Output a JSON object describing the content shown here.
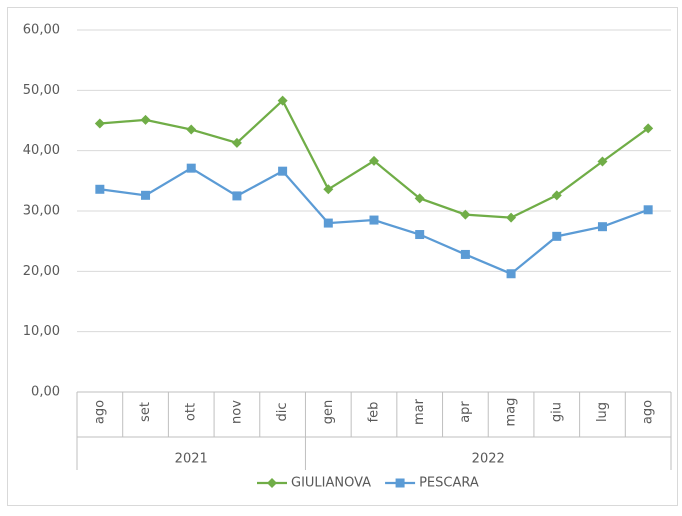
{
  "chart_data": {
    "type": "line",
    "groups": [
      {
        "label": "2021",
        "categories": [
          "ago",
          "set",
          "ott",
          "nov",
          "dic"
        ]
      },
      {
        "label": "2022",
        "categories": [
          "gen",
          "feb",
          "mar",
          "apr",
          "mag",
          "giu",
          "lug",
          "ago"
        ]
      }
    ],
    "series": [
      {
        "name": "GIULIANOVA",
        "color": "#70ad47",
        "marker": "diamond",
        "values": [
          44.5,
          45.1,
          43.5,
          41.3,
          48.3,
          33.6,
          38.3,
          32.1,
          29.4,
          28.9,
          32.6,
          38.2,
          43.7
        ]
      },
      {
        "name": "PESCARA",
        "color": "#5b9bd5",
        "marker": "square",
        "values": [
          33.6,
          32.6,
          37.1,
          32.5,
          36.6,
          28.0,
          28.5,
          26.1,
          22.8,
          19.6,
          25.8,
          27.4,
          30.2
        ]
      }
    ],
    "ylim": [
      0,
      60
    ],
    "yticks": [
      {
        "value": 0,
        "label": "0,00"
      },
      {
        "value": 10,
        "label": "10,00"
      },
      {
        "value": 20,
        "label": "20,00"
      },
      {
        "value": 30,
        "label": "30,00"
      },
      {
        "value": 40,
        "label": "40,00"
      },
      {
        "value": 50,
        "label": "50,00"
      },
      {
        "value": 60,
        "label": "60,00"
      }
    ],
    "grid": true,
    "legend": "bottom"
  }
}
